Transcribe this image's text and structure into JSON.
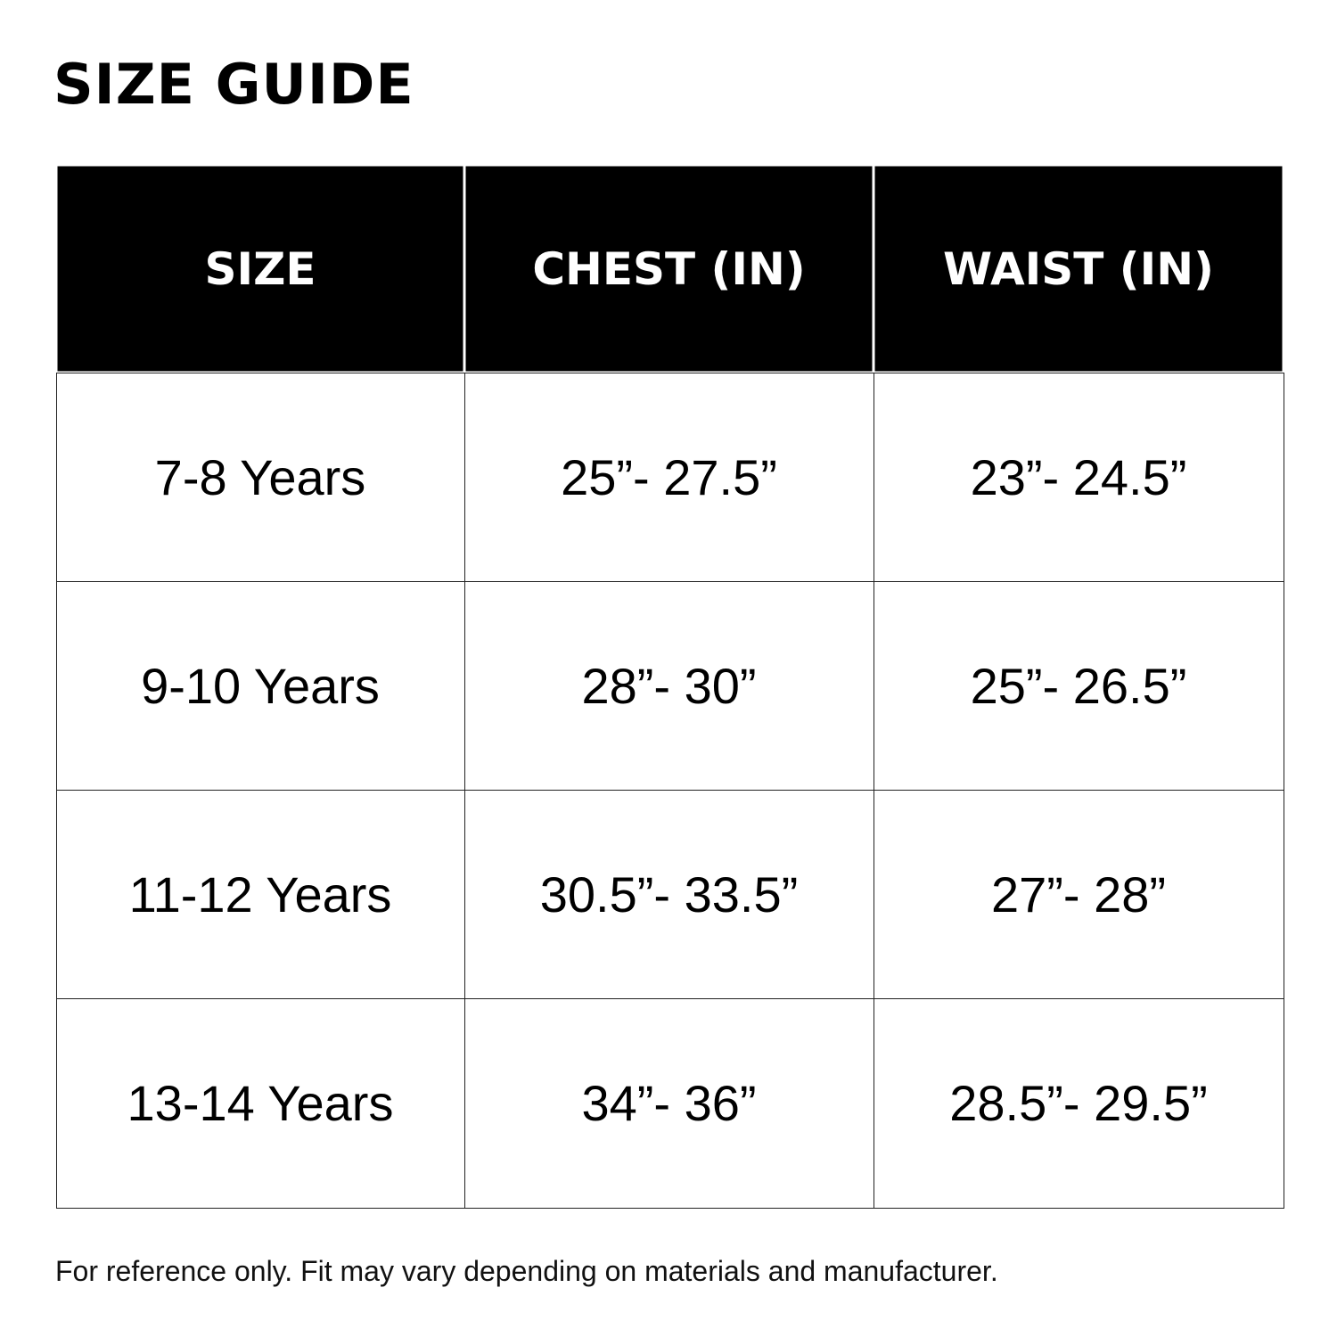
{
  "title": "SIZE GUIDE",
  "table": {
    "headers": [
      "SIZE",
      "CHEST (IN)",
      "WAIST (IN)"
    ],
    "rows": [
      [
        "7-8 Years",
        "25”- 27.5”",
        "23”- 24.5”"
      ],
      [
        "9-10 Years",
        "28”- 30”",
        "25”- 26.5”"
      ],
      [
        "11-12 Years",
        "30.5”- 33.5”",
        "27”- 28”"
      ],
      [
        "13-14 Years",
        "34”- 36”",
        "28.5”- 29.5”"
      ]
    ]
  },
  "note": "For reference only. Fit may vary depending on materials and manufacturer.",
  "colors": {
    "header_bg": "#000000",
    "header_text": "#ffffff"
  }
}
